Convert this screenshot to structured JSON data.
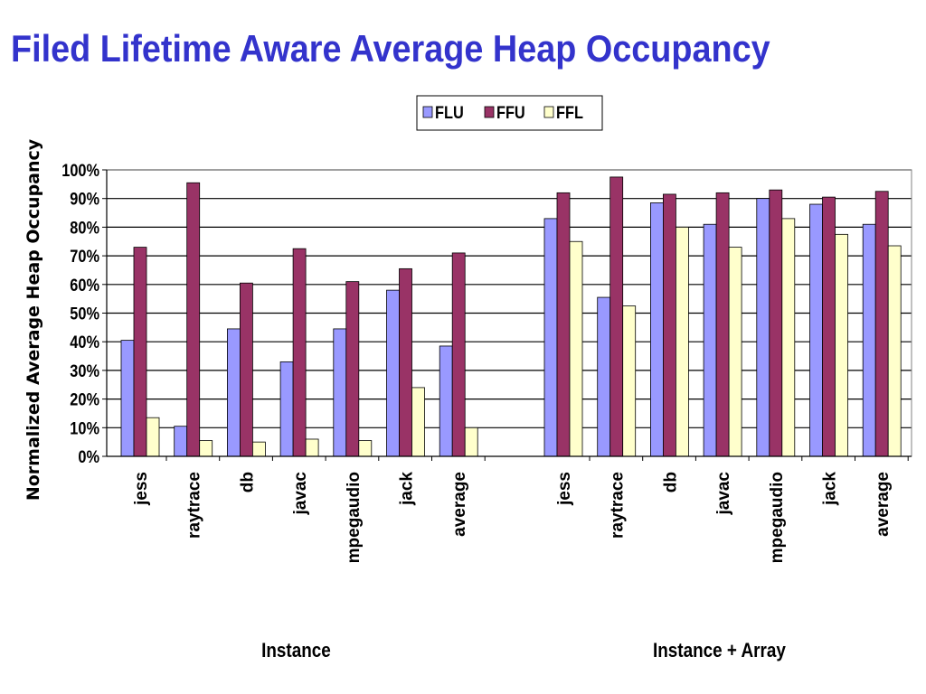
{
  "slide_title": "Filed Lifetime Aware Average Heap Occupancy",
  "colors": {
    "FLU": "#9999ff",
    "FFU": "#993366",
    "FFL": "#ffffcc",
    "title": "#3333cc"
  },
  "chart_data": {
    "type": "bar",
    "ylabel": "Normalized Average Heap Occupancy",
    "ylim": [
      0,
      100
    ],
    "yticks": [
      "0%",
      "10%",
      "20%",
      "30%",
      "40%",
      "50%",
      "60%",
      "70%",
      "80%",
      "90%",
      "100%"
    ],
    "grid": true,
    "legend": {
      "position": "top-center",
      "entries": [
        "FLU",
        "FFU",
        "FFL"
      ]
    },
    "groups": [
      {
        "label": "Instance",
        "categories": [
          "jess",
          "raytrace",
          "db",
          "javac",
          "mpegaudio",
          "jack",
          "average"
        ],
        "series": [
          {
            "name": "FLU",
            "values": [
              40.5,
              10.5,
              44.5,
              33,
              44.5,
              58,
              38.5
            ]
          },
          {
            "name": "FFU",
            "values": [
              73,
              95.5,
              60.5,
              72.5,
              61,
              65.5,
              71
            ]
          },
          {
            "name": "FFL",
            "values": [
              13.5,
              5.5,
              5,
              6,
              5.5,
              24,
              10
            ]
          }
        ]
      },
      {
        "label": "Instance + Array",
        "categories": [
          "jess",
          "raytrace",
          "db",
          "javac",
          "mpegaudio",
          "jack",
          "average"
        ],
        "series": [
          {
            "name": "FLU",
            "values": [
              83,
              55.5,
              88.5,
              81,
              90,
              88,
              81
            ]
          },
          {
            "name": "FFU",
            "values": [
              92,
              97.5,
              91.5,
              92,
              93,
              90.5,
              92.5
            ]
          },
          {
            "name": "FFL",
            "values": [
              75,
              52.5,
              80,
              73,
              83,
              77.5,
              73.5
            ]
          }
        ]
      }
    ]
  }
}
